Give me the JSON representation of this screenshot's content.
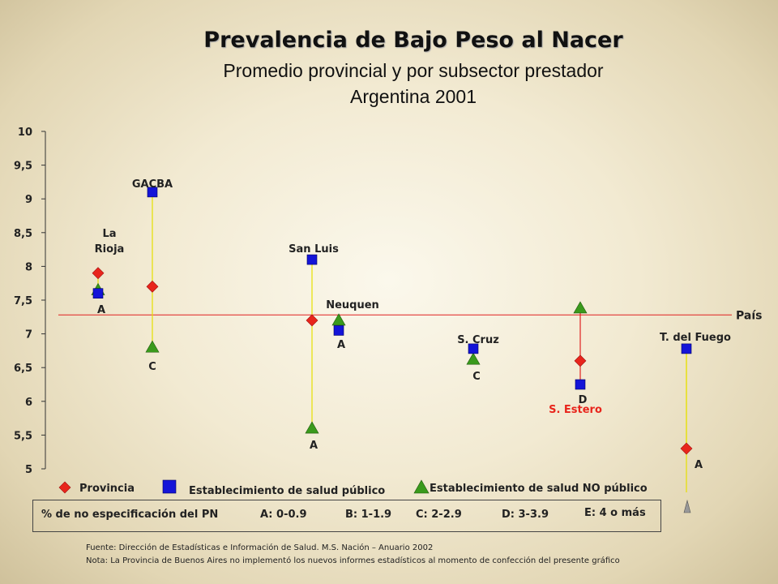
{
  "title": "Prevalencia de Bajo Peso al Nacer",
  "subtitle1": "Promedio provincial y por subsector prestador",
  "subtitle2": "Argentina 2001",
  "chart_data": {
    "type": "scatter",
    "ylim": [
      5,
      10
    ],
    "yticks": [
      "5",
      "5,5",
      "6",
      "6,5",
      "7",
      "7,5",
      "8",
      "8,5",
      "9",
      "9,5",
      "10"
    ],
    "reference_line": {
      "label": "País",
      "value": 7.28
    },
    "provinces": [
      {
        "name": "La Rioja",
        "provincia": 7.9,
        "publico": 7.6,
        "no_publico": 7.65,
        "grade": "A"
      },
      {
        "name": "GACBA",
        "provincia": 7.7,
        "publico": 9.1,
        "no_publico": 6.8,
        "grade": "C"
      },
      {
        "name": "San Luis",
        "provincia": 7.2,
        "publico": 8.1,
        "no_publico": 5.6,
        "grade": "A"
      },
      {
        "name": "Neuquen",
        "provincia": null,
        "publico": 7.05,
        "no_publico": 7.2,
        "grade": "A"
      },
      {
        "name": "S. Cruz",
        "provincia": null,
        "publico": 6.78,
        "no_publico": 6.62,
        "grade": "C"
      },
      {
        "name": "S. Estero",
        "provincia": 6.6,
        "publico": 6.25,
        "no_publico": 7.38,
        "grade": "D"
      },
      {
        "name": "T. del Fuego",
        "provincia": 5.3,
        "publico": 6.78,
        "no_publico": null,
        "grade": "A"
      }
    ],
    "legend": {
      "provincia": "Provincia",
      "publico": "Establecimiento de salud público",
      "no_publico": "Establecimiento de salud NO público"
    },
    "colors": {
      "provincia": "#e8251c",
      "publico": "#1414d8",
      "no_publico": "#3a9a1c",
      "ref_line": "#e02020",
      "whisker_yellow": "#e6e000",
      "whisker_red": "#e02020"
    }
  },
  "spec": {
    "label": "% de no especificación del PN",
    "grades": [
      "A: 0-0.9",
      "B: 1-1.9",
      "C: 2-2.9",
      "D: 3-3.9",
      "E: 4 o más"
    ]
  },
  "footnotes": {
    "source": "Fuente: Dirección de Estadísticas e Información de Salud. M.S. Nación – Anuario 2002",
    "note": "Nota: La Provincia de Buenos Aires no implementó los nuevos informes estadísticos al momento de confección del presente gráfico"
  }
}
